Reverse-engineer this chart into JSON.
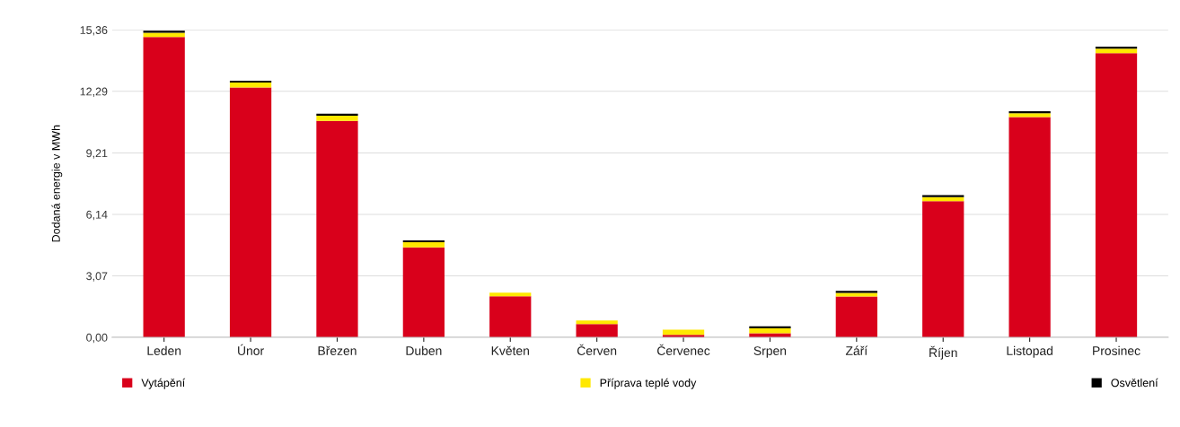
{
  "chart_data": {
    "type": "bar",
    "stacked": true,
    "ylabel": "Dodaná energie v MWh",
    "categories": [
      "Leden",
      "Únor",
      "Březen",
      "Duben",
      "Květen",
      "Červen",
      "Červenec",
      "Srpen",
      "Září",
      "Říjen",
      "Listopad",
      "Prosinec"
    ],
    "series": [
      {
        "name": "Vytápění",
        "color": "#d9001b",
        "values": [
          15.0,
          12.48,
          10.81,
          4.5,
          2.05,
          0.66,
          0.13,
          0.2,
          2.04,
          6.8,
          11.0,
          14.2
        ]
      },
      {
        "name": "Příprava teplé vody",
        "color": "#ffe800",
        "values": [
          0.22,
          0.25,
          0.26,
          0.25,
          0.18,
          0.18,
          0.25,
          0.25,
          0.18,
          0.2,
          0.2,
          0.22
        ]
      },
      {
        "name": "Osvětlení",
        "color": "#000000",
        "values": [
          0.1,
          0.09,
          0.1,
          0.09,
          0,
          0,
          0,
          0.1,
          0.1,
          0.1,
          0.1,
          0.1
        ]
      }
    ],
    "ylim": [
      0,
      15.36
    ],
    "yticks": [
      {
        "value": 0,
        "label": "0,00"
      },
      {
        "value": 3.07,
        "label": "3,07"
      },
      {
        "value": 6.14,
        "label": "6,14"
      },
      {
        "value": 9.21,
        "label": "9,21"
      },
      {
        "value": 12.29,
        "label": "12,29"
      },
      {
        "value": 15.36,
        "label": "15,36"
      }
    ],
    "grid": "y",
    "legend": "bottom"
  }
}
